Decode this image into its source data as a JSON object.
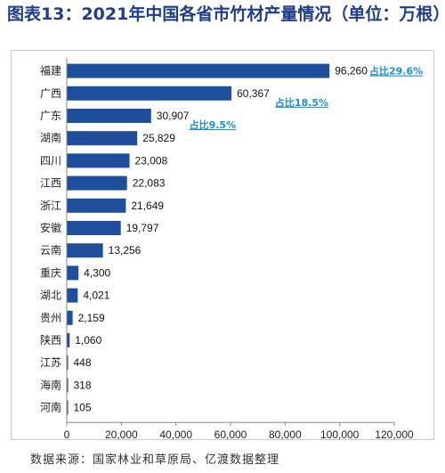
{
  "title": "图表13：2021年中国各省市竹材产量情况（单位：万根）",
  "source": "数据来源：国家林业和草原局、亿渡数据整理",
  "colors": {
    "bar": "#1f4e9c",
    "annotation": "#1a8fd4",
    "title": "#1f3d8c"
  },
  "chart_data": {
    "type": "bar",
    "orientation": "horizontal",
    "categories": [
      "福建",
      "广西",
      "广东",
      "湖南",
      "四川",
      "江西",
      "浙江",
      "安徽",
      "云南",
      "重庆",
      "湖北",
      "贵州",
      "陕西",
      "江苏",
      "海南",
      "河南"
    ],
    "values": [
      96260,
      60367,
      30907,
      25829,
      23008,
      22083,
      21649,
      19797,
      13256,
      4300,
      4021,
      2159,
      1060,
      448,
      318,
      105
    ],
    "value_labels": [
      "96,260",
      "60,367",
      "30,907",
      "25,829",
      "23,008",
      "22,083",
      "21,649",
      "19,797",
      "13,256",
      "4,300",
      "4,021",
      "2,159",
      "1,060",
      "448",
      "318",
      "105"
    ],
    "xlim": [
      0,
      120000
    ],
    "xticks": [
      "0",
      "20,000",
      "40,000",
      "60,000",
      "80,000",
      "100,000",
      "120,000"
    ],
    "grid": false,
    "annotations": [
      {
        "category": "福建",
        "text": "占比29.6%"
      },
      {
        "category": "广西",
        "text": "占比18.5%"
      },
      {
        "category": "广东",
        "text": "占比9.5%"
      }
    ]
  }
}
